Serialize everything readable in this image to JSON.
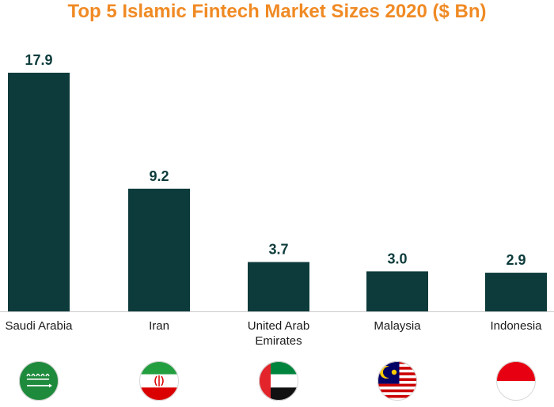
{
  "chart_data": {
    "type": "bar",
    "title": "Top 5 Islamic Fintech Market Sizes 2020 ($ Bn)",
    "categories": [
      "Saudi Arabia",
      "Iran",
      "United Arab Emirates",
      "Malaysia",
      "Indonesia"
    ],
    "category_lines": [
      [
        "Saudi Arabia"
      ],
      [
        "Iran"
      ],
      [
        "United Arab",
        "Emirates"
      ],
      [
        "Malaysia"
      ],
      [
        "Indonesia"
      ]
    ],
    "values": [
      17.9,
      9.2,
      3.7,
      3.0,
      2.9
    ],
    "value_labels": [
      "17.9",
      "9.2",
      "3.7",
      "3.0",
      "2.9"
    ],
    "ylim": [
      0,
      17.9
    ],
    "grid": false,
    "legend": "none",
    "bar_color": "#0d3b3b",
    "title_color": "#f08a24",
    "flags": [
      "saudi-arabia-flag-icon",
      "iran-flag-icon",
      "uae-flag-icon",
      "malaysia-flag-icon",
      "indonesia-flag-icon"
    ]
  }
}
